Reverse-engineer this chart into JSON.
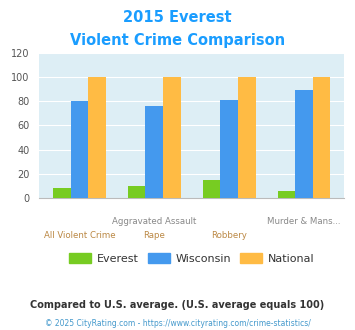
{
  "title_line1": "2015 Everest",
  "title_line2": "Violent Crime Comparison",
  "title_color": "#1a9dff",
  "everest_values": [
    8,
    10,
    15,
    6
  ],
  "wisconsin_values": [
    80,
    76,
    81,
    89
  ],
  "national_values": [
    100,
    100,
    100,
    100
  ],
  "everest_color": "#77cc22",
  "wisconsin_color": "#4499ee",
  "national_color": "#ffbb44",
  "bg_color": "#ddeef5",
  "ylim": [
    0,
    120
  ],
  "yticks": [
    0,
    20,
    40,
    60,
    80,
    100,
    120
  ],
  "legend_labels": [
    "Everest",
    "Wisconsin",
    "National"
  ],
  "group_labels_top": [
    "",
    "Aggravated Assault",
    "",
    "Murder & Mans..."
  ],
  "group_labels_bot": [
    "All Violent Crime",
    "Rape",
    "Robbery",
    ""
  ],
  "footnote1": "Compared to U.S. average. (U.S. average equals 100)",
  "footnote2": "© 2025 CityRating.com - https://www.cityrating.com/crime-statistics/",
  "footnote1_color": "#333333",
  "footnote2_color": "#4499cc"
}
